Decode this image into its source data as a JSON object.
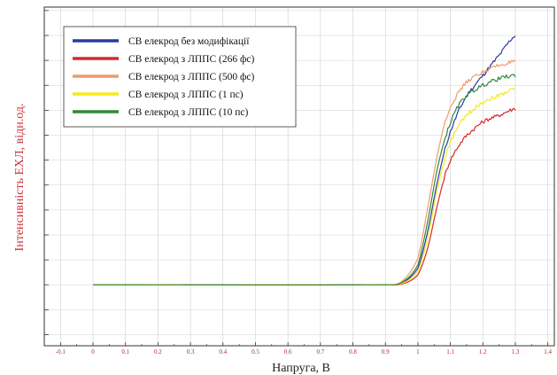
{
  "chart_data": {
    "type": "line",
    "title": "",
    "xlabel": "Напруга, В",
    "ylabel": "Інтенсивність ЕХЛ, відн.од.",
    "xlim": [
      -0.15,
      1.42
    ],
    "ylim": [
      0,
      1
    ],
    "x_ticks": [
      -0.1,
      0,
      0.1,
      0.2,
      0.3,
      0.4,
      0.5,
      0.6,
      0.7,
      0.8,
      0.9,
      1,
      1.1,
      1.2,
      1.3,
      1.4
    ],
    "x_tick_labels": [
      "-0.1",
      "0",
      "0.1",
      "0.2",
      "0.3",
      "0.4",
      "0.5",
      "0.6",
      "0.7",
      "0.8",
      "0.9",
      "1",
      "1.1",
      "1.2",
      "1.3",
      "1.4"
    ],
    "grid": true,
    "legend_position": "top-left",
    "series": [
      {
        "name": "СВ елекрод без модифікації",
        "color": "#2b3aa0",
        "x": [
          0,
          0.9,
          0.95,
          1.0,
          1.03,
          1.06,
          1.09,
          1.12,
          1.15,
          1.2,
          1.25,
          1.3
        ],
        "y": [
          0.17,
          0.17,
          0.175,
          0.22,
          0.33,
          0.48,
          0.6,
          0.68,
          0.74,
          0.8,
          0.86,
          0.92
        ]
      },
      {
        "name": "СВ елекрод з ЛППС (266 фс)",
        "color": "#d42a2a",
        "x": [
          0,
          0.9,
          0.95,
          1.0,
          1.03,
          1.06,
          1.09,
          1.12,
          1.15,
          1.2,
          1.25,
          1.3
        ],
        "y": [
          0.17,
          0.17,
          0.172,
          0.2,
          0.28,
          0.41,
          0.52,
          0.58,
          0.62,
          0.66,
          0.68,
          0.7
        ]
      },
      {
        "name": "СВ елекрод з ЛППС (500 фс)",
        "color": "#f19a6e",
        "x": [
          0,
          0.9,
          0.95,
          1.0,
          1.03,
          1.06,
          1.09,
          1.12,
          1.15,
          1.2,
          1.25,
          1.3
        ],
        "y": [
          0.17,
          0.17,
          0.18,
          0.25,
          0.4,
          0.56,
          0.68,
          0.74,
          0.78,
          0.81,
          0.83,
          0.84
        ]
      },
      {
        "name": "СВ елекрод з ЛППС (1 пс)",
        "color": "#f4ea1c",
        "x": [
          0,
          0.9,
          0.95,
          1.0,
          1.03,
          1.06,
          1.09,
          1.12,
          1.15,
          1.2,
          1.25,
          1.3
        ],
        "y": [
          0.17,
          0.17,
          0.174,
          0.21,
          0.31,
          0.46,
          0.57,
          0.64,
          0.68,
          0.72,
          0.74,
          0.76
        ]
      },
      {
        "name": "СВ елекрод з ЛППС (10 пс)",
        "color": "#2e8a3a",
        "x": [
          0,
          0.9,
          0.95,
          1.0,
          1.03,
          1.06,
          1.09,
          1.12,
          1.15,
          1.2,
          1.25,
          1.3
        ],
        "y": [
          0.17,
          0.17,
          0.177,
          0.23,
          0.36,
          0.52,
          0.63,
          0.7,
          0.74,
          0.77,
          0.79,
          0.8
        ]
      }
    ]
  },
  "colors": {
    "tick": "#b42828",
    "grid": "#d0d0d0",
    "axis": "#333333"
  }
}
